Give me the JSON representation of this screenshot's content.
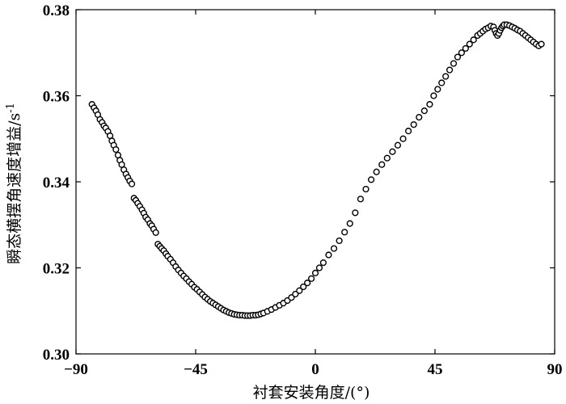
{
  "chart_data": {
    "type": "scatter",
    "title": "",
    "xlabel": "衬套安装角度/(°)",
    "ylabel": "瞬态横摆角速度增益/s",
    "ylabel_superscript": "-1",
    "xlim": [
      -90,
      90
    ],
    "ylim": [
      0.3,
      0.38
    ],
    "xticks": [
      "−90",
      "−45",
      "0",
      "45",
      "90"
    ],
    "xtick_values": [
      -90,
      -45,
      0,
      45,
      90
    ],
    "yticks": [
      "0.30",
      "0.32",
      "0.34",
      "0.36",
      "0.38"
    ],
    "ytick_values": [
      0.3,
      0.32,
      0.34,
      0.36,
      0.38
    ],
    "grid": false,
    "marker": "hollow-circle",
    "marker_color": "#000000",
    "series": [
      {
        "points": [
          [
            -84,
            0.358
          ],
          [
            -83.2,
            0.3572
          ],
          [
            -82.5,
            0.3565
          ],
          [
            -81.8,
            0.3556
          ],
          [
            -81,
            0.3545
          ],
          [
            -80.2,
            0.3538
          ],
          [
            -79.5,
            0.353
          ],
          [
            -78.8,
            0.3525
          ],
          [
            -78,
            0.3517
          ],
          [
            -77.2,
            0.3507
          ],
          [
            -76.5,
            0.3495
          ],
          [
            -75.8,
            0.3485
          ],
          [
            -75,
            0.3475
          ],
          [
            -74.2,
            0.3462
          ],
          [
            -73.5,
            0.345
          ],
          [
            -72.8,
            0.344
          ],
          [
            -72,
            0.3428
          ],
          [
            -71.2,
            0.3418
          ],
          [
            -70.5,
            0.341
          ],
          [
            -69.8,
            0.3402
          ],
          [
            -69,
            0.3395
          ],
          [
            -68.2,
            0.3362
          ],
          [
            -67.5,
            0.3357
          ],
          [
            -66.8,
            0.335
          ],
          [
            -66,
            0.3343
          ],
          [
            -65.2,
            0.3335
          ],
          [
            -64.5,
            0.3327
          ],
          [
            -63.8,
            0.3318
          ],
          [
            -63,
            0.3312
          ],
          [
            -62.2,
            0.3303
          ],
          [
            -61.5,
            0.3298
          ],
          [
            -60.8,
            0.329
          ],
          [
            -60,
            0.3282
          ],
          [
            -59.2,
            0.3255
          ],
          [
            -58.5,
            0.325
          ],
          [
            -57.8,
            0.3245
          ],
          [
            -57,
            0.324
          ],
          [
            -56.2,
            0.3233
          ],
          [
            -55.5,
            0.3227
          ],
          [
            -54.5,
            0.322
          ],
          [
            -53.5,
            0.3212
          ],
          [
            -52.5,
            0.3203
          ],
          [
            -51.5,
            0.3195
          ],
          [
            -50.5,
            0.3188
          ],
          [
            -49.5,
            0.3181
          ],
          [
            -48.5,
            0.3175
          ],
          [
            -47.5,
            0.3168
          ],
          [
            -46.5,
            0.3162
          ],
          [
            -45.5,
            0.3155
          ],
          [
            -44.5,
            0.315
          ],
          [
            -43.5,
            0.3144
          ],
          [
            -42.5,
            0.3138
          ],
          [
            -41.5,
            0.3132
          ],
          [
            -40.5,
            0.3127
          ],
          [
            -39.5,
            0.3122
          ],
          [
            -38.5,
            0.3118
          ],
          [
            -37.5,
            0.3114
          ],
          [
            -36.5,
            0.311
          ],
          [
            -35.5,
            0.3106
          ],
          [
            -34.5,
            0.3102
          ],
          [
            -33.5,
            0.3099
          ],
          [
            -32.5,
            0.3096
          ],
          [
            -31.5,
            0.3094
          ],
          [
            -30.5,
            0.3092
          ],
          [
            -29.5,
            0.3091
          ],
          [
            -28.5,
            0.309
          ],
          [
            -27.5,
            0.309
          ],
          [
            -26.5,
            0.3089
          ],
          [
            -25.5,
            0.3089
          ],
          [
            -24.5,
            0.3089
          ],
          [
            -23.5,
            0.309
          ],
          [
            -22.5,
            0.309
          ],
          [
            -21.5,
            0.3091
          ],
          [
            -20.5,
            0.3093
          ],
          [
            -19.5,
            0.3095
          ],
          [
            -18,
            0.3099
          ],
          [
            -16.5,
            0.3103
          ],
          [
            -15,
            0.3108
          ],
          [
            -13.5,
            0.3113
          ],
          [
            -12,
            0.3118
          ],
          [
            -10.5,
            0.3124
          ],
          [
            -9,
            0.3131
          ],
          [
            -7.5,
            0.3139
          ],
          [
            -6,
            0.3147
          ],
          [
            -4.5,
            0.3156
          ],
          [
            -3,
            0.3165
          ],
          [
            -1.5,
            0.3175
          ],
          [
            0,
            0.3188
          ],
          [
            1.5,
            0.32
          ],
          [
            3,
            0.3212
          ],
          [
            5,
            0.323
          ],
          [
            7,
            0.3245
          ],
          [
            9,
            0.3263
          ],
          [
            11,
            0.3283
          ],
          [
            13,
            0.3303
          ],
          [
            15,
            0.3328
          ],
          [
            17,
            0.336
          ],
          [
            19,
            0.3383
          ],
          [
            21,
            0.3405
          ],
          [
            23,
            0.3423
          ],
          [
            25,
            0.344
          ],
          [
            27,
            0.3455
          ],
          [
            29,
            0.347
          ],
          [
            31,
            0.3485
          ],
          [
            33,
            0.35
          ],
          [
            35,
            0.3518
          ],
          [
            37,
            0.3533
          ],
          [
            39,
            0.355
          ],
          [
            41,
            0.3565
          ],
          [
            43,
            0.358
          ],
          [
            44.5,
            0.36
          ],
          [
            46,
            0.3615
          ],
          [
            47.5,
            0.363
          ],
          [
            49,
            0.3645
          ],
          [
            50.5,
            0.366
          ],
          [
            52,
            0.3675
          ],
          [
            53.5,
            0.369
          ],
          [
            55,
            0.37
          ],
          [
            56.5,
            0.371
          ],
          [
            58,
            0.372
          ],
          [
            59.5,
            0.373
          ],
          [
            61,
            0.374
          ],
          [
            62,
            0.3745
          ],
          [
            63,
            0.375
          ],
          [
            64,
            0.3755
          ],
          [
            65,
            0.3758
          ],
          [
            66,
            0.3762
          ],
          [
            67,
            0.376
          ],
          [
            67.5,
            0.3752
          ],
          [
            68,
            0.3745
          ],
          [
            68.5,
            0.374
          ],
          [
            69,
            0.3745
          ],
          [
            69.5,
            0.3752
          ],
          [
            70,
            0.3758
          ],
          [
            70.5,
            0.3762
          ],
          [
            71,
            0.3765
          ],
          [
            72,
            0.3765
          ],
          [
            73,
            0.3763
          ],
          [
            74,
            0.376
          ],
          [
            75,
            0.3757
          ],
          [
            76,
            0.3753
          ],
          [
            77,
            0.375
          ],
          [
            78,
            0.3745
          ],
          [
            79,
            0.374
          ],
          [
            80,
            0.3735
          ],
          [
            81,
            0.373
          ],
          [
            82,
            0.3725
          ],
          [
            83,
            0.372
          ],
          [
            84,
            0.3716
          ],
          [
            85,
            0.372
          ]
        ]
      }
    ]
  }
}
